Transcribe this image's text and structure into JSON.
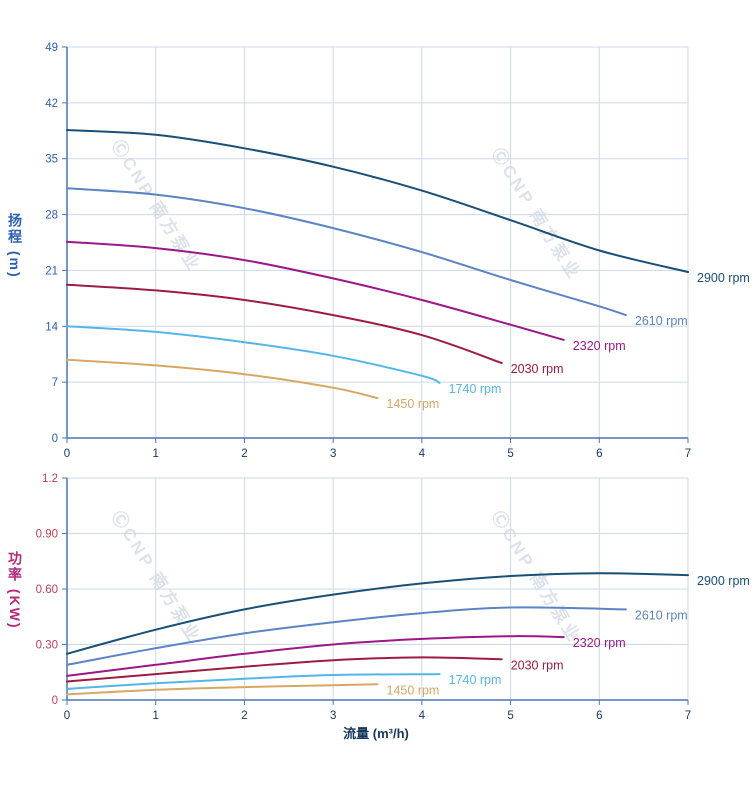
{
  "watermark": {
    "text": "ⒸCNP 南方泵业"
  },
  "xlabel": "流量 (m³/h)",
  "style": {
    "grid_color": "#cdd9ea",
    "axis_color": "#4a76b4",
    "xtick_color": "#16365c",
    "curve_width": 2
  },
  "chart_data": [
    {
      "type": "line",
      "title": "",
      "ylabel": "扬程 (m)",
      "ylabel_color": "#2d5fb3",
      "ytick_color": "#2d5fb3",
      "xlabel": "流量 (m³/h)",
      "xlim": [
        0,
        7
      ],
      "ylim": [
        0,
        49
      ],
      "xticks": [
        0,
        1,
        2,
        3,
        4,
        5,
        6,
        7
      ],
      "yticks": [
        0,
        7,
        14,
        21,
        28,
        35,
        42,
        49
      ],
      "ytick_labels": [
        "0",
        "7",
        "14",
        "21",
        "28",
        "35",
        "42",
        "49"
      ],
      "grid": true,
      "legend_position": "right-of-curve-end",
      "series": [
        {
          "name": "2900 rpm",
          "color": "#1a4f76",
          "points": [
            [
              0,
              38.6
            ],
            [
              1,
              38.0
            ],
            [
              2,
              36.3
            ],
            [
              3,
              34.0
            ],
            [
              4,
              31.0
            ],
            [
              5,
              27.3
            ],
            [
              6,
              23.5
            ],
            [
              7,
              20.8
            ]
          ]
        },
        {
          "name": "2610 rpm",
          "color": "#5c83c4",
          "points": [
            [
              0,
              31.3
            ],
            [
              1,
              30.5
            ],
            [
              2,
              28.8
            ],
            [
              3,
              26.3
            ],
            [
              4,
              23.3
            ],
            [
              5,
              19.8
            ],
            [
              6,
              16.5
            ],
            [
              6.3,
              15.4
            ]
          ]
        },
        {
          "name": "2320 rpm",
          "color": "#9c1788",
          "points": [
            [
              0,
              24.6
            ],
            [
              1,
              23.8
            ],
            [
              2,
              22.3
            ],
            [
              3,
              20.0
            ],
            [
              4,
              17.3
            ],
            [
              5,
              14.2
            ],
            [
              5.6,
              12.3
            ]
          ]
        },
        {
          "name": "2030 rpm",
          "color": "#9e1b42",
          "points": [
            [
              0,
              19.2
            ],
            [
              1,
              18.5
            ],
            [
              2,
              17.3
            ],
            [
              3,
              15.4
            ],
            [
              4,
              12.9
            ],
            [
              4.9,
              9.4
            ]
          ]
        },
        {
          "name": "1740 rpm",
          "color": "#54b6e8",
          "points": [
            [
              0,
              14.0
            ],
            [
              1,
              13.3
            ],
            [
              2,
              12.0
            ],
            [
              3,
              10.3
            ],
            [
              4,
              7.8
            ],
            [
              4.2,
              6.9
            ]
          ]
        },
        {
          "name": "1450 rpm",
          "color": "#d7a763",
          "points": [
            [
              0,
              9.8
            ],
            [
              1,
              9.1
            ],
            [
              2,
              8.0
            ],
            [
              3,
              6.3
            ],
            [
              3.5,
              5.0
            ]
          ]
        }
      ]
    },
    {
      "type": "line",
      "title": "",
      "ylabel": "功率 (KW)",
      "ylabel_color": "#b52a7a",
      "ytick_color": "#c04055",
      "xlabel": "流量 (m³/h)",
      "xlim": [
        0,
        7
      ],
      "ylim": [
        0,
        1.2
      ],
      "xticks": [
        0,
        1,
        2,
        3,
        4,
        5,
        6,
        7
      ],
      "yticks": [
        0,
        0.3,
        0.6,
        0.9,
        1.2
      ],
      "ytick_labels": [
        "0",
        "0.30",
        "0.60",
        "0.90",
        "1.2"
      ],
      "grid": true,
      "legend_position": "right-of-curve-end",
      "series": [
        {
          "name": "2900 rpm",
          "color": "#1a4f76",
          "points": [
            [
              0,
              0.25
            ],
            [
              1,
              0.38
            ],
            [
              2,
              0.49
            ],
            [
              3,
              0.57
            ],
            [
              4,
              0.63
            ],
            [
              5,
              0.67
            ],
            [
              6,
              0.685
            ],
            [
              7,
              0.675
            ]
          ]
        },
        {
          "name": "2610 rpm",
          "color": "#5c83c4",
          "points": [
            [
              0,
              0.19
            ],
            [
              1,
              0.28
            ],
            [
              2,
              0.36
            ],
            [
              3,
              0.42
            ],
            [
              4,
              0.47
            ],
            [
              5,
              0.5
            ],
            [
              6.3,
              0.49
            ]
          ]
        },
        {
          "name": "2320 rpm",
          "color": "#9c1788",
          "points": [
            [
              0,
              0.13
            ],
            [
              1,
              0.19
            ],
            [
              2,
              0.25
            ],
            [
              3,
              0.3
            ],
            [
              4,
              0.33
            ],
            [
              5,
              0.345
            ],
            [
              5.6,
              0.34
            ]
          ]
        },
        {
          "name": "2030 rpm",
          "color": "#9e1b42",
          "points": [
            [
              0,
              0.1
            ],
            [
              1,
              0.14
            ],
            [
              2,
              0.18
            ],
            [
              3,
              0.215
            ],
            [
              4,
              0.23
            ],
            [
              4.9,
              0.22
            ]
          ]
        },
        {
          "name": "1740 rpm",
          "color": "#54b6e8",
          "points": [
            [
              0,
              0.06
            ],
            [
              1,
              0.09
            ],
            [
              2,
              0.115
            ],
            [
              3,
              0.135
            ],
            [
              4.2,
              0.14
            ]
          ]
        },
        {
          "name": "1450 rpm",
          "color": "#d7a763",
          "points": [
            [
              0,
              0.03
            ],
            [
              1,
              0.055
            ],
            [
              2,
              0.07
            ],
            [
              3,
              0.08
            ],
            [
              3.5,
              0.085
            ]
          ]
        }
      ]
    }
  ]
}
